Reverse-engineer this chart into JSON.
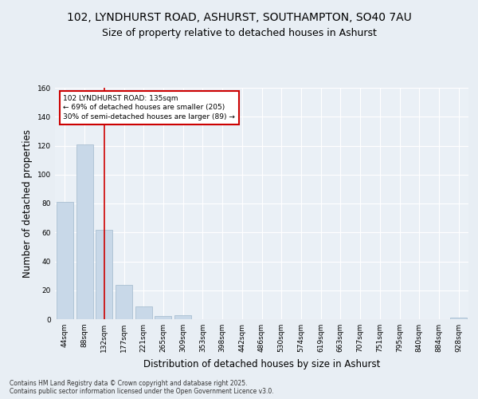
{
  "title_line1": "102, LYNDHURST ROAD, ASHURST, SOUTHAMPTON, SO40 7AU",
  "title_line2": "Size of property relative to detached houses in Ashurst",
  "xlabel": "Distribution of detached houses by size in Ashurst",
  "ylabel": "Number of detached properties",
  "bar_values": [
    81,
    121,
    62,
    24,
    9,
    2,
    3,
    0,
    0,
    0,
    0,
    0,
    0,
    0,
    0,
    0,
    0,
    0,
    0,
    0,
    1
  ],
  "categories": [
    "44sqm",
    "88sqm",
    "132sqm",
    "177sqm",
    "221sqm",
    "265sqm",
    "309sqm",
    "353sqm",
    "398sqm",
    "442sqm",
    "486sqm",
    "530sqm",
    "574sqm",
    "619sqm",
    "663sqm",
    "707sqm",
    "751sqm",
    "795sqm",
    "840sqm",
    "884sqm",
    "928sqm"
  ],
  "bar_color": "#c8d8e8",
  "bar_edgecolor": "#a0b8cc",
  "vline_x": 2,
  "vline_color": "#cc0000",
  "annotation_text": "102 LYNDHURST ROAD: 135sqm\n← 69% of detached houses are smaller (205)\n30% of semi-detached houses are larger (89) →",
  "annotation_box_color": "#cc0000",
  "ylim": [
    0,
    160
  ],
  "yticks": [
    0,
    20,
    40,
    60,
    80,
    100,
    120,
    140,
    160
  ],
  "background_color": "#e8eef4",
  "plot_background": "#eaf0f6",
  "grid_color": "#ffffff",
  "footer_text": "Contains HM Land Registry data © Crown copyright and database right 2025.\nContains public sector information licensed under the Open Government Licence v3.0.",
  "title_fontsize": 10,
  "subtitle_fontsize": 9,
  "tick_fontsize": 6.5,
  "label_fontsize": 8.5
}
